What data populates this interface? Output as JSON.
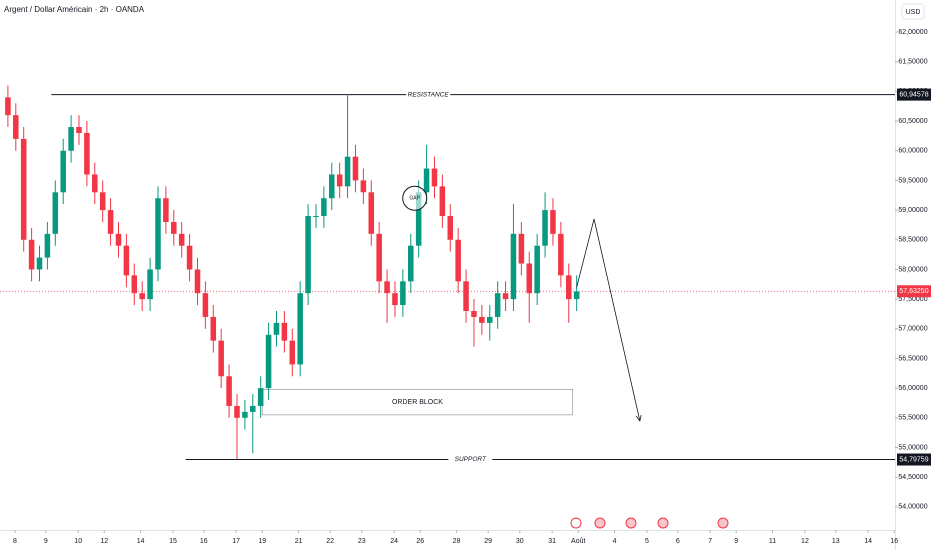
{
  "chart_data": {
    "type": "candlestick",
    "title": "Argent / Dollar Américain · 2h · OANDA",
    "currency": "USD",
    "up_color": "#089981",
    "down_color": "#f23645",
    "x": [
      1,
      2,
      3,
      4,
      5,
      6,
      7,
      8,
      9,
      10,
      11,
      12,
      13,
      14,
      15,
      16,
      17,
      18,
      19,
      20,
      21,
      22,
      23,
      24,
      25,
      26,
      27,
      28,
      29,
      30,
      31,
      32,
      33,
      34,
      35,
      36,
      37,
      38,
      39,
      40,
      41,
      42,
      43,
      44,
      45,
      46,
      47,
      48,
      49,
      50,
      51,
      52,
      53,
      54,
      55,
      56,
      57,
      58,
      59,
      60,
      61,
      62,
      63,
      64,
      65,
      66,
      67,
      68,
      69,
      70,
      71,
      72,
      73
    ],
    "open": [
      60.9,
      60.6,
      60.2,
      58.5,
      58.0,
      58.2,
      58.6,
      59.3,
      60.0,
      60.4,
      60.3,
      59.6,
      59.3,
      59.0,
      58.6,
      58.4,
      57.9,
      57.6,
      57.5,
      58.0,
      59.2,
      58.8,
      58.6,
      58.4,
      58.0,
      57.6,
      57.2,
      56.8,
      56.2,
      55.7,
      55.5,
      55.6,
      55.7,
      56.0,
      56.9,
      57.1,
      56.8,
      56.4,
      57.6,
      58.9,
      58.9,
      59.2,
      59.6,
      59.4,
      59.9,
      59.5,
      59.3,
      58.6,
      57.8,
      57.6,
      57.4,
      57.8,
      58.4,
      59.3,
      59.7,
      59.4,
      58.9,
      58.5,
      57.8,
      57.3,
      57.2,
      57.1,
      57.2,
      57.6,
      57.5,
      58.6,
      58.1,
      57.6,
      58.4,
      59.0,
      58.6,
      57.9,
      57.5
    ],
    "high": [
      61.1,
      60.8,
      60.4,
      58.7,
      58.4,
      58.8,
      59.5,
      60.2,
      60.6,
      60.6,
      60.5,
      59.8,
      59.5,
      59.2,
      58.8,
      58.6,
      58.1,
      57.8,
      58.2,
      59.4,
      59.4,
      59.0,
      58.8,
      58.6,
      58.2,
      57.8,
      57.4,
      57.0,
      56.4,
      55.9,
      55.8,
      55.9,
      56.2,
      57.1,
      57.3,
      57.3,
      57.0,
      57.8,
      59.1,
      59.1,
      59.4,
      59.8,
      59.8,
      60.95,
      60.1,
      59.7,
      59.5,
      58.8,
      58.0,
      57.8,
      58.0,
      58.6,
      59.5,
      60.1,
      59.9,
      59.6,
      59.1,
      58.7,
      58.0,
      57.5,
      57.4,
      57.4,
      57.8,
      57.8,
      59.1,
      58.8,
      58.3,
      58.6,
      59.3,
      59.2,
      58.8,
      58.1,
      57.9
    ],
    "low": [
      60.4,
      60.0,
      58.3,
      57.8,
      57.8,
      58.0,
      58.4,
      59.1,
      59.8,
      60.1,
      59.4,
      59.1,
      58.8,
      58.4,
      58.2,
      57.7,
      57.4,
      57.3,
      57.3,
      57.8,
      58.6,
      58.4,
      58.2,
      57.8,
      57.4,
      57.0,
      56.6,
      56.0,
      55.5,
      54.8,
      55.3,
      54.9,
      55.5,
      55.8,
      56.7,
      56.6,
      56.2,
      56.2,
      57.4,
      58.7,
      58.7,
      59.0,
      59.2,
      59.2,
      59.3,
      59.1,
      58.4,
      57.6,
      57.1,
      57.2,
      57.2,
      57.6,
      58.2,
      59.1,
      59.2,
      58.7,
      58.3,
      57.6,
      57.1,
      56.7,
      56.9,
      56.8,
      57.0,
      57.3,
      57.3,
      57.9,
      57.1,
      57.4,
      58.2,
      58.4,
      57.7,
      57.1,
      57.3
    ],
    "close": [
      60.6,
      60.2,
      58.5,
      58.0,
      58.2,
      58.6,
      59.3,
      60.0,
      60.4,
      60.3,
      59.6,
      59.3,
      59.0,
      58.6,
      58.4,
      57.9,
      57.6,
      57.5,
      58.0,
      59.2,
      58.8,
      58.6,
      58.4,
      58.0,
      57.6,
      57.2,
      56.8,
      56.2,
      55.7,
      55.5,
      55.6,
      55.7,
      56.0,
      56.9,
      57.1,
      56.8,
      56.4,
      57.6,
      58.9,
      58.9,
      59.2,
      59.6,
      59.4,
      59.9,
      59.5,
      59.3,
      58.6,
      57.8,
      57.6,
      57.4,
      57.8,
      58.4,
      59.3,
      59.7,
      59.4,
      58.9,
      58.5,
      57.8,
      57.3,
      57.2,
      57.1,
      57.2,
      57.6,
      57.5,
      58.6,
      58.1,
      57.6,
      58.4,
      59.0,
      58.6,
      57.9,
      57.5,
      57.63
    ],
    "xlim": [
      0,
      113.3
    ],
    "ylim": [
      53.61,
      62.54
    ],
    "xticks": [
      {
        "value": 1.9,
        "label": "8"
      },
      {
        "value": 5.8,
        "label": "9"
      },
      {
        "value": 9.9,
        "label": "10"
      },
      {
        "value": 13.2,
        "label": "12"
      },
      {
        "value": 17.8,
        "label": "14"
      },
      {
        "value": 21.9,
        "label": "15"
      },
      {
        "value": 25.8,
        "label": "16"
      },
      {
        "value": 29.9,
        "label": "17"
      },
      {
        "value": 33.2,
        "label": "19"
      },
      {
        "value": 37.8,
        "label": "21"
      },
      {
        "value": 41.8,
        "label": "22"
      },
      {
        "value": 45.8,
        "label": "23"
      },
      {
        "value": 49.9,
        "label": "24"
      },
      {
        "value": 53.2,
        "label": "26"
      },
      {
        "value": 57.8,
        "label": "28"
      },
      {
        "value": 61.8,
        "label": "29"
      },
      {
        "value": 65.8,
        "label": "30"
      },
      {
        "value": 69.9,
        "label": "31"
      },
      {
        "value": 73.2,
        "label": "Août"
      },
      {
        "value": 77.8,
        "label": "4"
      },
      {
        "value": 81.9,
        "label": "5"
      },
      {
        "value": 85.8,
        "label": "6"
      },
      {
        "value": 89.9,
        "label": "7"
      },
      {
        "value": 93.2,
        "label": "9"
      },
      {
        "value": 97.8,
        "label": "11"
      },
      {
        "value": 101.9,
        "label": "12"
      },
      {
        "value": 105.8,
        "label": "13"
      },
      {
        "value": 109.9,
        "label": "14"
      },
      {
        "value": 113.2,
        "label": "16"
      }
    ],
    "yticks": [
      {
        "value": 62,
        "label": "62,00000"
      },
      {
        "value": 61.5,
        "label": "61,50000"
      },
      {
        "value": 61,
        "label": "61,00000"
      },
      {
        "value": 60.5,
        "label": "60,50000"
      },
      {
        "value": 60,
        "label": "60,00000"
      },
      {
        "value": 59.5,
        "label": "59,50000"
      },
      {
        "value": 59,
        "label": "59,00000"
      },
      {
        "value": 58.5,
        "label": "58,50000"
      },
      {
        "value": 58,
        "label": "58,00000"
      },
      {
        "value": 57.5,
        "label": "57,50000"
      },
      {
        "value": 57,
        "label": "57,00000"
      },
      {
        "value": 56.5,
        "label": "56,50000"
      },
      {
        "value": 56,
        "label": "56,00000"
      },
      {
        "value": 55.5,
        "label": "55,50000"
      },
      {
        "value": 55,
        "label": "55,00000"
      },
      {
        "value": 54.5,
        "label": "54,50000"
      },
      {
        "value": 54,
        "label": "54,00000"
      }
    ],
    "levels": [
      {
        "name": "RESISTANCE",
        "value": 60.94578,
        "label": "60,94578",
        "x": [
          6.5,
          113.3
        ]
      },
      {
        "name": "SUPPORT",
        "value": 54.79759,
        "label": "54,79759",
        "x": [
          23.5,
          113.3
        ]
      }
    ],
    "last_price": {
      "value": 57.6325,
      "label": "57,63250"
    },
    "order_block": {
      "label": "ORDER BLOCK",
      "x": [
        33.2,
        72.5
      ],
      "y": [
        55.55,
        55.98
      ]
    },
    "gap": {
      "label": "GAP",
      "x": 52.5,
      "y": 59.2
    },
    "projection": {
      "x": [
        73,
        75.2,
        81
      ],
      "y": [
        57.7,
        58.85,
        55.45
      ]
    }
  }
}
